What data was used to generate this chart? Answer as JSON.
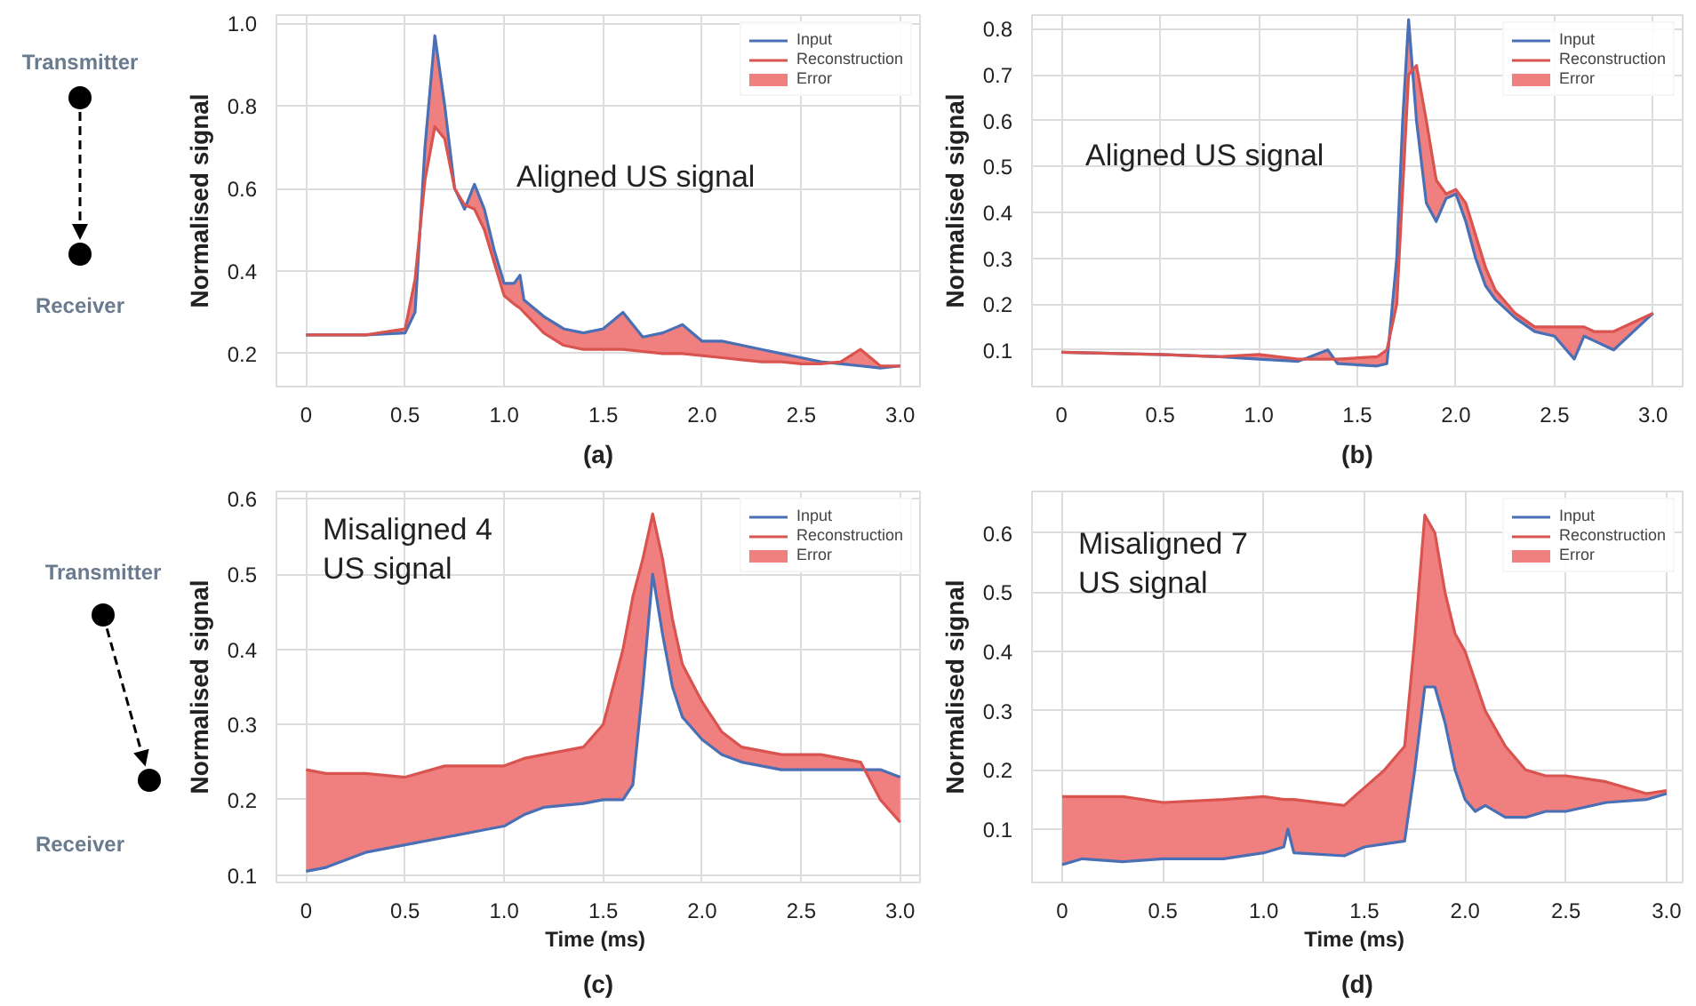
{
  "chart_data": [
    {
      "type": "other",
      "annotations": [
        "Transmitter",
        "Receiver"
      ]
    },
    {
      "type": "line",
      "ylabel": "Normalised signal",
      "annotations": [
        "Aligned US signal",
        "(a)",
        "Error"
      ],
      "grid": true,
      "legend": "top right",
      "xlim": [
        -0.15,
        3.1
      ],
      "ylim": [
        0.12,
        1.02
      ],
      "xticks": [
        0,
        0.5,
        {
          "value": 1,
          "label": "1.0"
        },
        1.5,
        {
          "value": 2,
          "label": "2.0"
        },
        2.5,
        {
          "value": 3,
          "label": "3.0"
        }
      ],
      "yticks": [
        0.2,
        0.4,
        0.6,
        0.8,
        {
          "value": 1,
          "label": "1.0"
        }
      ],
      "x": [
        0,
        0.3,
        0.5,
        0.55,
        0.6,
        0.65,
        0.7,
        0.75,
        0.8,
        0.85,
        0.9,
        0.95,
        1.0,
        1.05,
        1.08,
        1.1,
        1.2,
        1.3,
        1.4,
        1.5,
        1.6,
        1.7,
        1.8,
        1.9,
        2.0,
        2.1,
        2.2,
        2.3,
        2.4,
        2.5,
        2.6,
        2.7,
        2.8,
        2.9,
        3.0
      ],
      "series": [
        {
          "name": "Input",
          "color": "#4a6fb5",
          "values": [
            0.245,
            0.245,
            0.25,
            0.3,
            0.7,
            0.97,
            0.8,
            0.6,
            0.55,
            0.61,
            0.55,
            0.45,
            0.37,
            0.37,
            0.39,
            0.33,
            0.29,
            0.26,
            0.25,
            0.26,
            0.3,
            0.24,
            0.25,
            0.27,
            0.23,
            0.23,
            0.22,
            0.21,
            0.2,
            0.19,
            0.18,
            0.175,
            0.17,
            0.165,
            0.17
          ]
        },
        {
          "name": "Reconstruction",
          "color": "#d9534f",
          "values": [
            0.245,
            0.245,
            0.26,
            0.38,
            0.62,
            0.75,
            0.72,
            0.6,
            0.56,
            0.55,
            0.5,
            0.42,
            0.34,
            0.32,
            0.31,
            0.3,
            0.25,
            0.22,
            0.21,
            0.21,
            0.21,
            0.205,
            0.2,
            0.2,
            0.195,
            0.19,
            0.185,
            0.18,
            0.18,
            0.175,
            0.175,
            0.18,
            0.21,
            0.17,
            0.17
          ],
          "lower": [
            0.245,
            0.245,
            0.25,
            0.3,
            0.7,
            0.97,
            0.8,
            0.6,
            0.55,
            0.61,
            0.55,
            0.45,
            0.37,
            0.37,
            0.39,
            0.33,
            0.29,
            0.26,
            0.25,
            0.26,
            0.3,
            0.24,
            0.25,
            0.27,
            0.23,
            0.23,
            0.22,
            0.21,
            0.2,
            0.19,
            0.18,
            0.175,
            0.17,
            0.165,
            0.17
          ],
          "upper": [
            0.245,
            0.245,
            0.26,
            0.38,
            0.62,
            0.75,
            0.72,
            0.6,
            0.56,
            0.55,
            0.5,
            0.42,
            0.34,
            0.32,
            0.31,
            0.3,
            0.25,
            0.22,
            0.21,
            0.21,
            0.21,
            0.205,
            0.2,
            0.2,
            0.195,
            0.19,
            0.185,
            0.18,
            0.18,
            0.175,
            0.175,
            0.18,
            0.21,
            0.17,
            0.17
          ]
        }
      ]
    },
    {
      "type": "line",
      "ylabel": "Normalised signal",
      "annotations": [
        "Aligned US signal",
        "(b)",
        "Error"
      ],
      "grid": true,
      "legend": "top right",
      "xlim": [
        -0.15,
        3.15
      ],
      "ylim": [
        0.02,
        0.83
      ],
      "xticks": [
        0,
        0.5,
        {
          "value": 1,
          "label": "1.0"
        },
        1.5,
        {
          "value": 2,
          "label": "2.0"
        },
        2.5,
        {
          "value": 3,
          "label": "3.0"
        }
      ],
      "yticks": [
        0.1,
        0.2,
        0.3,
        0.4,
        0.5,
        0.6,
        0.7,
        0.8
      ],
      "x": [
        0,
        0.5,
        0.8,
        1.0,
        1.2,
        1.35,
        1.4,
        1.6,
        1.65,
        1.7,
        1.73,
        1.76,
        1.8,
        1.85,
        1.9,
        1.95,
        2.0,
        2.05,
        2.1,
        2.15,
        2.2,
        2.3,
        2.4,
        2.5,
        2.6,
        2.65,
        2.7,
        2.8,
        2.9,
        3.0
      ],
      "series": [
        {
          "name": "Input",
          "color": "#4a6fb5",
          "values": [
            0.095,
            0.09,
            0.085,
            0.08,
            0.075,
            0.1,
            0.07,
            0.065,
            0.07,
            0.3,
            0.6,
            0.82,
            0.6,
            0.42,
            0.38,
            0.43,
            0.44,
            0.38,
            0.3,
            0.24,
            0.21,
            0.17,
            0.14,
            0.13,
            0.08,
            0.13,
            0.12,
            0.1,
            0.14,
            0.18
          ]
        },
        {
          "name": "Reconstruction",
          "color": "#d9534f",
          "values": [
            0.095,
            0.09,
            0.085,
            0.09,
            0.08,
            0.08,
            0.08,
            0.085,
            0.1,
            0.2,
            0.45,
            0.7,
            0.72,
            0.6,
            0.47,
            0.44,
            0.45,
            0.42,
            0.35,
            0.28,
            0.23,
            0.18,
            0.15,
            0.15,
            0.15,
            0.15,
            0.14,
            0.14,
            0.16,
            0.18
          ],
          "lower": [
            0.095,
            0.09,
            0.085,
            0.08,
            0.075,
            0.1,
            0.07,
            0.065,
            0.07,
            0.3,
            0.6,
            0.82,
            0.6,
            0.42,
            0.38,
            0.43,
            0.44,
            0.38,
            0.3,
            0.24,
            0.21,
            0.17,
            0.14,
            0.13,
            0.08,
            0.13,
            0.12,
            0.1,
            0.14,
            0.18
          ],
          "upper": [
            0.095,
            0.09,
            0.085,
            0.09,
            0.08,
            0.08,
            0.08,
            0.085,
            0.1,
            0.2,
            0.45,
            0.7,
            0.72,
            0.6,
            0.47,
            0.44,
            0.45,
            0.42,
            0.35,
            0.28,
            0.23,
            0.18,
            0.15,
            0.15,
            0.15,
            0.15,
            0.14,
            0.14,
            0.16,
            0.18
          ]
        }
      ]
    },
    {
      "type": "other",
      "annotations": [
        "Transmitter",
        "Receiver"
      ]
    },
    {
      "type": "line",
      "xlabel": "Time  (ms)",
      "ylabel": "Normalised signal",
      "annotations": [
        "Misaligned 4\nUS signal",
        "(c)",
        "Error"
      ],
      "grid": true,
      "legend": "top right",
      "xlim": [
        -0.15,
        3.1
      ],
      "ylim": [
        0.09,
        0.61
      ],
      "xticks": [
        0,
        0.5,
        {
          "value": 1,
          "label": "1.0"
        },
        1.5,
        {
          "value": 2,
          "label": "2.0"
        },
        2.5,
        {
          "value": 3,
          "label": "3.0"
        }
      ],
      "yticks": [
        0.1,
        0.2,
        0.3,
        0.4,
        0.5,
        0.6
      ],
      "x": [
        0,
        0.1,
        0.3,
        0.5,
        0.7,
        0.9,
        1.0,
        1.1,
        1.2,
        1.4,
        1.5,
        1.6,
        1.65,
        1.7,
        1.75,
        1.8,
        1.85,
        1.9,
        2.0,
        2.1,
        2.2,
        2.4,
        2.6,
        2.8,
        2.9,
        3.0
      ],
      "series": [
        {
          "name": "Input",
          "color": "#4a6fb5",
          "values": [
            0.105,
            0.11,
            0.13,
            0.14,
            0.15,
            0.16,
            0.165,
            0.18,
            0.19,
            0.195,
            0.2,
            0.2,
            0.22,
            0.35,
            0.5,
            0.42,
            0.35,
            0.31,
            0.28,
            0.26,
            0.25,
            0.24,
            0.24,
            0.24,
            0.24,
            0.23
          ]
        },
        {
          "name": "Reconstruction",
          "color": "#d9534f",
          "values": [
            0.24,
            0.235,
            0.235,
            0.23,
            0.245,
            0.245,
            0.245,
            0.255,
            0.26,
            0.27,
            0.3,
            0.4,
            0.47,
            0.52,
            0.58,
            0.52,
            0.44,
            0.38,
            0.33,
            0.29,
            0.27,
            0.26,
            0.26,
            0.25,
            0.2,
            0.17
          ],
          "lower": [
            0.105,
            0.11,
            0.13,
            0.14,
            0.15,
            0.16,
            0.165,
            0.18,
            0.19,
            0.195,
            0.2,
            0.2,
            0.22,
            0.35,
            0.5,
            0.42,
            0.35,
            0.31,
            0.28,
            0.26,
            0.25,
            0.24,
            0.24,
            0.24,
            0.24,
            0.23
          ],
          "upper": [
            0.24,
            0.235,
            0.235,
            0.23,
            0.245,
            0.245,
            0.245,
            0.255,
            0.26,
            0.27,
            0.3,
            0.4,
            0.47,
            0.52,
            0.58,
            0.52,
            0.44,
            0.38,
            0.33,
            0.29,
            0.27,
            0.26,
            0.26,
            0.25,
            0.2,
            0.17
          ]
        }
      ]
    },
    {
      "type": "line",
      "xlabel": "Time  (ms)",
      "ylabel": "Normalised signal",
      "annotations": [
        "Misaligned 7\nUS signal",
        "(d)",
        "Error"
      ],
      "grid": true,
      "legend": "top right",
      "xlim": [
        -0.15,
        3.08
      ],
      "ylim": [
        0.01,
        0.67
      ],
      "xticks": [
        0,
        0.5,
        {
          "value": 1,
          "label": "1.0"
        },
        1.5,
        {
          "value": 2,
          "label": "2.0"
        },
        2.5,
        {
          "value": 3,
          "label": "3.0"
        }
      ],
      "yticks": [
        0.1,
        0.2,
        0.3,
        0.4,
        0.5,
        0.6
      ],
      "x": [
        0,
        0.1,
        0.3,
        0.5,
        0.8,
        1.0,
        1.1,
        1.12,
        1.15,
        1.4,
        1.5,
        1.6,
        1.7,
        1.75,
        1.8,
        1.85,
        1.9,
        1.95,
        2.0,
        2.05,
        2.1,
        2.2,
        2.3,
        2.4,
        2.5,
        2.7,
        2.9,
        3.0
      ],
      "series": [
        {
          "name": "Input",
          "color": "#4a6fb5",
          "values": [
            0.04,
            0.05,
            0.045,
            0.05,
            0.05,
            0.06,
            0.07,
            0.1,
            0.06,
            0.055,
            0.07,
            0.075,
            0.08,
            0.2,
            0.34,
            0.34,
            0.28,
            0.2,
            0.15,
            0.13,
            0.14,
            0.12,
            0.12,
            0.13,
            0.13,
            0.145,
            0.15,
            0.16
          ]
        },
        {
          "name": "Reconstruction",
          "color": "#d9534f",
          "values": [
            0.155,
            0.155,
            0.155,
            0.145,
            0.15,
            0.155,
            0.15,
            0.15,
            0.15,
            0.14,
            0.17,
            0.2,
            0.24,
            0.42,
            0.63,
            0.6,
            0.5,
            0.43,
            0.4,
            0.35,
            0.3,
            0.24,
            0.2,
            0.19,
            0.19,
            0.18,
            0.16,
            0.165
          ],
          "lower": [
            0.04,
            0.05,
            0.045,
            0.05,
            0.05,
            0.06,
            0.07,
            0.1,
            0.06,
            0.055,
            0.07,
            0.075,
            0.08,
            0.2,
            0.34,
            0.34,
            0.28,
            0.2,
            0.15,
            0.13,
            0.14,
            0.12,
            0.12,
            0.13,
            0.13,
            0.145,
            0.15,
            0.16
          ],
          "upper": [
            0.155,
            0.155,
            0.155,
            0.145,
            0.15,
            0.155,
            0.15,
            0.15,
            0.15,
            0.14,
            0.17,
            0.2,
            0.24,
            0.42,
            0.63,
            0.6,
            0.5,
            0.43,
            0.4,
            0.35,
            0.3,
            0.24,
            0.2,
            0.19,
            0.19,
            0.18,
            0.16,
            0.165
          ]
        }
      ]
    }
  ]
}
